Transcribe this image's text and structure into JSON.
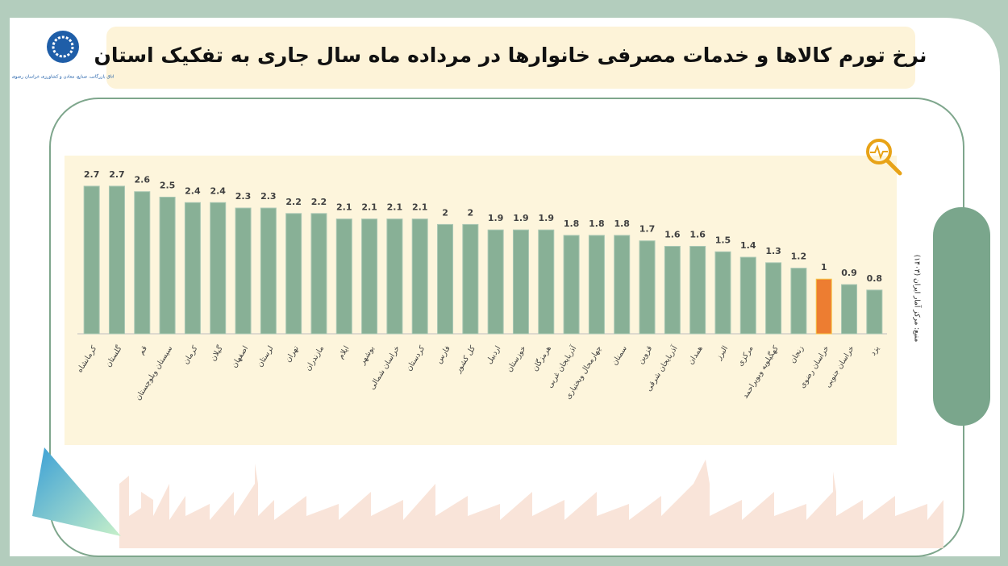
{
  "logo_text": "اتاق بازرگانی، صنایع، معادن و کشاورزی خراسان رضوی",
  "source": "منبع: مرکز آمار ایران (۱۴۰۳)",
  "chart_data": {
    "type": "bar",
    "title": "نرخ تورم کالاها و خدمات مصرفی خانوارها در مرداده ماه سال جاری به تفکیک استان",
    "categories": [
      "کرمانشاه",
      "گلستان",
      "قم",
      "سیستان وبلوچستان",
      "کرمان",
      "گیلان",
      "اصفهان",
      "لرستان",
      "تهران",
      "مازندران",
      "ایلام",
      "بوشهر",
      "خراسان شمالی",
      "کردستان",
      "فارس",
      "کل کشور",
      "اردبیل",
      "خوزستان",
      "هرمزگان",
      "آذربایجان غربی",
      "چهارمحال وبختیاری",
      "سمنان",
      "قزوین",
      "آذربایجان شرقی",
      "همدان",
      "البرز",
      "مرکزی",
      "کهگیلویه وبویراحمد",
      "زنجان",
      "خراسان رضوی",
      "خراسان جنوبی",
      "یزد"
    ],
    "values": [
      2.7,
      2.7,
      2.6,
      2.5,
      2.4,
      2.4,
      2.3,
      2.3,
      2.2,
      2.2,
      2.1,
      2.1,
      2.1,
      2.1,
      2,
      2,
      1.9,
      1.9,
      1.9,
      1.8,
      1.8,
      1.8,
      1.7,
      1.6,
      1.6,
      1.5,
      1.4,
      1.3,
      1.2,
      1,
      0.9,
      0.8
    ],
    "colors": [
      "#88b096",
      "#88b096",
      "#88b096",
      "#88b096",
      "#88b096",
      "#88b096",
      "#88b096",
      "#88b096",
      "#88b096",
      "#88b096",
      "#88b096",
      "#88b096",
      "#88b096",
      "#88b096",
      "#88b096",
      "#88b096",
      "#88b096",
      "#88b096",
      "#88b096",
      "#88b096",
      "#88b096",
      "#88b096",
      "#88b096",
      "#88b096",
      "#88b096",
      "#88b096",
      "#88b096",
      "#88b096",
      "#88b096",
      "#ed7d31",
      "#88b096",
      "#88b096"
    ]
  }
}
